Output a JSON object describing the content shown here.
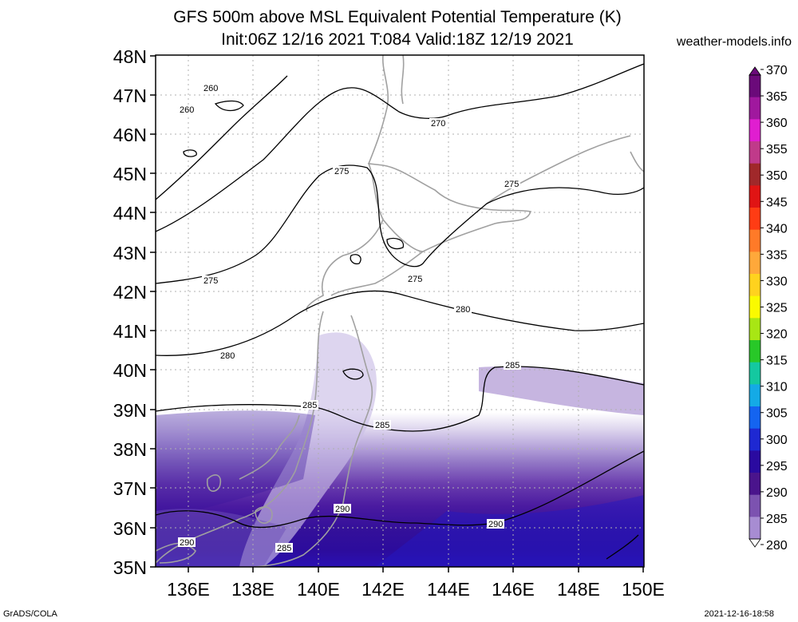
{
  "title": {
    "line1": "GFS 500m above MSL Equivalent Potential Temperature (K)",
    "line2": "Init:06Z 12/16 2021 T:084 Valid:18Z 12/19 2021"
  },
  "site": "weather-models.info",
  "footer": {
    "left": "GrADS/COLA",
    "right": "2021-12-16-18:58"
  },
  "axes": {
    "lat_labels": [
      "48N",
      "47N",
      "46N",
      "45N",
      "44N",
      "43N",
      "42N",
      "41N",
      "40N",
      "39N",
      "38N",
      "37N",
      "36N",
      "35N"
    ],
    "lon_labels": [
      "136E",
      "138E",
      "140E",
      "142E",
      "144E",
      "146E",
      "148E",
      "150E"
    ]
  },
  "colorbar": {
    "labels": [
      "370",
      "365",
      "360",
      "355",
      "350",
      "345",
      "340",
      "335",
      "330",
      "325",
      "320",
      "315",
      "310",
      "305",
      "300",
      "295",
      "290",
      "285",
      "280"
    ],
    "colors": [
      "#6b0a7a",
      "#a0189e",
      "#e01ed0",
      "#c03a8a",
      "#a0282a",
      "#e01414",
      "#ff3c14",
      "#ff7a28",
      "#ffa83a",
      "#ffd21e",
      "#fafa00",
      "#a8e614",
      "#28c828",
      "#14c8a0",
      "#14aae6",
      "#1464f0",
      "#1e28d2",
      "#2a0aa0",
      "#4a148c",
      "#7c52b0",
      "#a78cd2",
      "#d2c8ea"
    ]
  },
  "contour_labels": [
    "260",
    "260",
    "270",
    "275",
    "275",
    "275",
    "275",
    "280",
    "280",
    "285",
    "285",
    "285",
    "290",
    "290",
    "290",
    "285"
  ],
  "colors": {
    "land_outline": "#a0a0a0",
    "contour": "#000000",
    "grid": "#b0b0b0"
  }
}
